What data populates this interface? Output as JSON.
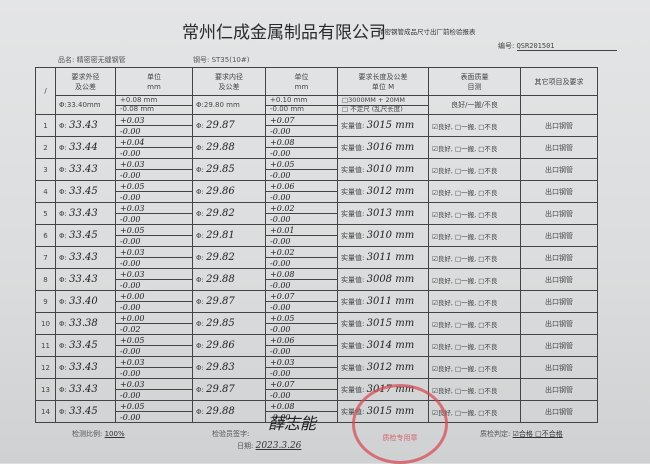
{
  "header": {
    "company": "常州仁成金属制品有限公司",
    "form_title": "精密钢管成品尺寸出厂前检验报表",
    "code_label": "编号:",
    "code_value": "QSR201501",
    "product_label": "品名: 精密密无缝钢管",
    "steel_label": "钢号: ST35(10#)"
  },
  "table": {
    "corner": "/",
    "col_od": "要求外径\n及公差",
    "col_od_unit": "单位\nmm",
    "col_id": "要求内径\n及公差",
    "col_id_unit": "单位\nmm",
    "col_len": "要求长度及公差\n单位 M",
    "col_surface": "表面质量\n目测",
    "col_other": "其它项目及要求",
    "spec_od": "Φ:33.40mm",
    "spec_od_plus": "+0.08 mm",
    "spec_od_minus": "-0.08 mm",
    "spec_id": "Φ:29.80 mm",
    "spec_id_plus": "+0.10 mm",
    "spec_id_minus": "-0.00 mm",
    "spec_len_1": "□3000MM  + 20MM",
    "spec_len_2": "□  不定尺 (乱尺长度)",
    "spec_surface": "良好/一搬/不良",
    "phi": "Φ:",
    "measured_label": "实量值:",
    "surface_options": "☑良好, □一搬, □不良",
    "other_value": "出口钢管",
    "rows": [
      {
        "no": "1",
        "od": "33.43",
        "od_p": "+0.03",
        "od_m": "-0.00",
        "id": "29.87",
        "id_p": "+0.07",
        "id_m": "-0.00",
        "len": "3015 mm"
      },
      {
        "no": "2",
        "od": "33.44",
        "od_p": "+0.04",
        "od_m": "-0.00",
        "id": "29.88",
        "id_p": "+0.08",
        "id_m": "-0.00",
        "len": "3016 mm"
      },
      {
        "no": "3",
        "od": "33.43",
        "od_p": "+0.03",
        "od_m": "-0.00",
        "id": "29.85",
        "id_p": "+0.05",
        "id_m": "-0.00",
        "len": "3010 mm"
      },
      {
        "no": "4",
        "od": "33.45",
        "od_p": "+0.05",
        "od_m": "-0.00",
        "id": "29.86",
        "id_p": "+0.06",
        "id_m": "-0.00",
        "len": "3012 mm"
      },
      {
        "no": "5",
        "od": "33.43",
        "od_p": "+0.03",
        "od_m": "-0.00",
        "id": "29.82",
        "id_p": "+0.02",
        "id_m": "-0.00",
        "len": "3013 mm"
      },
      {
        "no": "6",
        "od": "33.45",
        "od_p": "+0.05",
        "od_m": "-0.00",
        "id": "29.81",
        "id_p": "+0.01",
        "id_m": "-0.00",
        "len": "3010 mm"
      },
      {
        "no": "7",
        "od": "33.43",
        "od_p": "+0.03",
        "od_m": "-0.00",
        "id": "29.82",
        "id_p": "+0.02",
        "id_m": "-0.00",
        "len": "3011 mm"
      },
      {
        "no": "8",
        "od": "33.43",
        "od_p": "+0.03",
        "od_m": "-0.00",
        "id": "29.88",
        "id_p": "+0.08",
        "id_m": "-0.00",
        "len": "3008 mm"
      },
      {
        "no": "9",
        "od": "33.40",
        "od_p": "+0.00",
        "od_m": "-0.00",
        "id": "29.87",
        "id_p": "+0.07",
        "id_m": "-0.00",
        "len": "3011 mm"
      },
      {
        "no": "10",
        "od": "33.38",
        "od_p": "+0.00",
        "od_m": "-0.02",
        "id": "29.85",
        "id_p": "+0.05",
        "id_m": "-0.00",
        "len": "3015 mm"
      },
      {
        "no": "11",
        "od": "33.45",
        "od_p": "+0.05",
        "od_m": "-0.00",
        "id": "29.86",
        "id_p": "+0.06",
        "id_m": "-0.00",
        "len": "3014 mm"
      },
      {
        "no": "12",
        "od": "33.43",
        "od_p": "+0.03",
        "od_m": "-0.00",
        "id": "29.83",
        "id_p": "+0.03",
        "id_m": "-0.00",
        "len": "3012 mm"
      },
      {
        "no": "13",
        "od": "33.43",
        "od_p": "+0.03",
        "od_m": "-0.00",
        "id": "29.87",
        "id_p": "+0.07",
        "id_m": "-0.00",
        "len": "3017 mm"
      },
      {
        "no": "14",
        "od": "33.45",
        "od_p": "+0.05",
        "od_m": "-0.00",
        "id": "29.88",
        "id_p": "+0.08",
        "id_m": "-0.00",
        "len": "3015 mm"
      }
    ]
  },
  "footer": {
    "ratio_label": "检测比例:",
    "ratio_value": "100%",
    "inspector_label": "检验员签字:",
    "signature": "薛志能",
    "date_label": "日期:",
    "date_value": "2023.3.26",
    "judge_label": "质检判定:",
    "judge_value": "☑合格  □不合格",
    "stamp_text": "质检专用章"
  }
}
